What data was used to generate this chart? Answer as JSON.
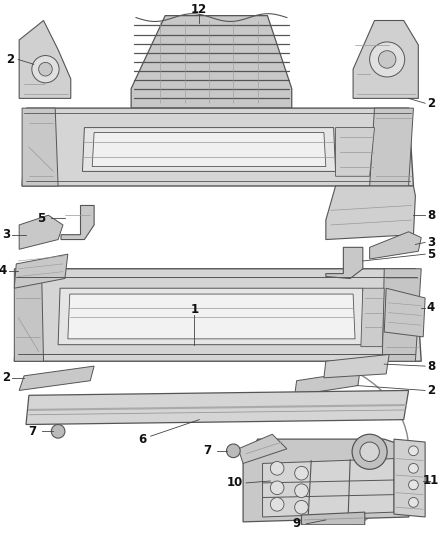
{
  "bg_color": "#ffffff",
  "lc": "#555555",
  "llc": "#999999",
  "fc": "#d8d8d8",
  "dfc": "#c0c0c0"
}
